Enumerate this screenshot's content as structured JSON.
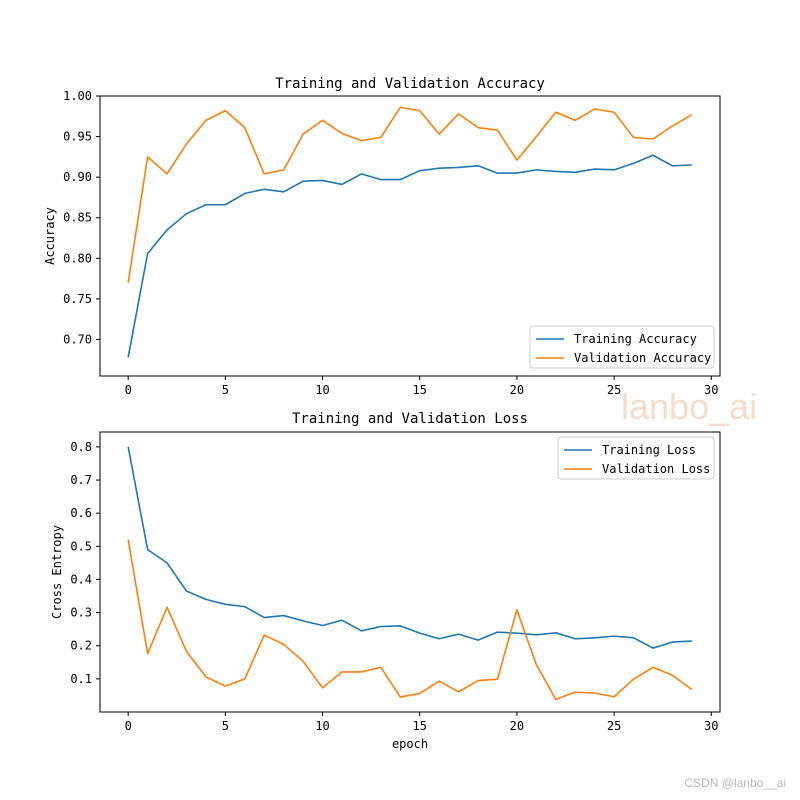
{
  "watermark": "lanbo_ai",
  "credit": "CSDN @lanbo__ai",
  "colors": {
    "training": "#1f77b4",
    "validation": "#ff7f0e"
  },
  "chart_data": [
    {
      "type": "line",
      "title": "Training and Validation Accuracy",
      "xlabel": "",
      "ylabel": "Accuracy",
      "xlim": [
        -1.45,
        30.45
      ],
      "ylim": [
        0.655,
        1.0
      ],
      "xticks": [
        0,
        5,
        10,
        15,
        20,
        25,
        30
      ],
      "yticks": [
        0.7,
        0.75,
        0.8,
        0.85,
        0.9,
        0.95,
        1.0
      ],
      "ytick_labels": [
        "0.70",
        "0.75",
        "0.80",
        "0.85",
        "0.90",
        "0.95",
        "1.00"
      ],
      "grid": false,
      "legend_position": "lower-right",
      "x": [
        0,
        1,
        2,
        3,
        4,
        5,
        6,
        7,
        8,
        9,
        10,
        11,
        12,
        13,
        14,
        15,
        16,
        17,
        18,
        19,
        20,
        21,
        22,
        23,
        24,
        25,
        26,
        27,
        28,
        29
      ],
      "series": [
        {
          "name": "Training Accuracy",
          "color": "#1f77b4",
          "values": [
            0.678,
            0.806,
            0.835,
            0.855,
            0.866,
            0.866,
            0.88,
            0.885,
            0.882,
            0.895,
            0.896,
            0.891,
            0.904,
            0.897,
            0.897,
            0.908,
            0.911,
            0.912,
            0.914,
            0.905,
            0.905,
            0.909,
            0.907,
            0.906,
            0.91,
            0.909,
            0.917,
            0.927,
            0.914,
            0.915
          ]
        },
        {
          "name": "Validation Accuracy",
          "color": "#ff7f0e",
          "values": [
            0.77,
            0.925,
            0.904,
            0.941,
            0.97,
            0.982,
            0.961,
            0.904,
            0.909,
            0.953,
            0.97,
            0.954,
            0.945,
            0.949,
            0.986,
            0.982,
            0.953,
            0.978,
            0.961,
            0.958,
            0.921,
            0.95,
            0.98,
            0.97,
            0.984,
            0.98,
            0.949,
            0.947,
            0.963,
            0.977
          ]
        }
      ]
    },
    {
      "type": "line",
      "title": "Training and Validation Loss",
      "xlabel": "epoch",
      "ylabel": "Cross Entropy",
      "xlim": [
        -1.45,
        30.45
      ],
      "ylim": [
        0.0,
        0.845
      ],
      "xticks": [
        0,
        5,
        10,
        15,
        20,
        25,
        30
      ],
      "yticks": [
        0.1,
        0.2,
        0.3,
        0.4,
        0.5,
        0.6,
        0.7,
        0.8
      ],
      "ytick_labels": [
        "0.1",
        "0.2",
        "0.3",
        "0.4",
        "0.5",
        "0.6",
        "0.7",
        "0.8"
      ],
      "grid": false,
      "legend_position": "upper-right",
      "x": [
        0,
        1,
        2,
        3,
        4,
        5,
        6,
        7,
        8,
        9,
        10,
        11,
        12,
        13,
        14,
        15,
        16,
        17,
        18,
        19,
        20,
        21,
        22,
        23,
        24,
        25,
        26,
        27,
        28,
        29
      ],
      "series": [
        {
          "name": "Training Loss",
          "color": "#1f77b4",
          "values": [
            0.8,
            0.49,
            0.45,
            0.365,
            0.34,
            0.325,
            0.318,
            0.285,
            0.291,
            0.275,
            0.261,
            0.277,
            0.245,
            0.258,
            0.26,
            0.238,
            0.221,
            0.235,
            0.217,
            0.241,
            0.238,
            0.233,
            0.239,
            0.221,
            0.224,
            0.229,
            0.224,
            0.193,
            0.211,
            0.214
          ]
        },
        {
          "name": "Validation Loss",
          "color": "#ff7f0e",
          "values": [
            0.52,
            0.176,
            0.316,
            0.183,
            0.106,
            0.078,
            0.1,
            0.232,
            0.204,
            0.153,
            0.073,
            0.121,
            0.121,
            0.135,
            0.045,
            0.056,
            0.093,
            0.061,
            0.095,
            0.099,
            0.308,
            0.143,
            0.038,
            0.06,
            0.057,
            0.046,
            0.099,
            0.135,
            0.111,
            0.068
          ]
        }
      ]
    }
  ]
}
